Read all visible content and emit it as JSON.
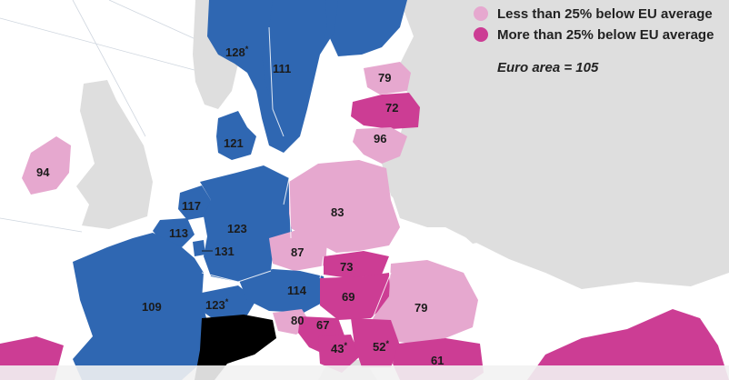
{
  "legend": {
    "items": [
      {
        "label": "Less than 25% below EU average",
        "color": "#e6a8cf"
      },
      {
        "label": "More than 25% below EU average",
        "color": "#cc3d94"
      }
    ]
  },
  "note": "Euro area = 105",
  "colors": {
    "above_average": "#2f67b2",
    "less_than_25_below": "#e6a8cf",
    "more_than_25_below": "#cc3d94",
    "non_eu": "#dedede",
    "sea": "#ffffff"
  },
  "regions": [
    {
      "id": "sweden",
      "value": "128",
      "mark": "*",
      "category": "above_average"
    },
    {
      "id": "finland",
      "value": "111",
      "mark": "",
      "category": "above_average"
    },
    {
      "id": "estonia",
      "value": "79",
      "mark": "",
      "category": "less_than_25_below"
    },
    {
      "id": "latvia",
      "value": "72",
      "mark": "",
      "category": "more_than_25_below"
    },
    {
      "id": "lithuania",
      "value": "96",
      "mark": "",
      "category": "less_than_25_below"
    },
    {
      "id": "denmark",
      "value": "121",
      "mark": "",
      "category": "above_average"
    },
    {
      "id": "ireland",
      "value": "94",
      "mark": "",
      "category": "less_than_25_below"
    },
    {
      "id": "poland",
      "value": "83",
      "mark": "",
      "category": "less_than_25_below"
    },
    {
      "id": "netherlands",
      "value": "117",
      "mark": "",
      "category": "above_average"
    },
    {
      "id": "germany",
      "value": "123",
      "mark": "",
      "category": "above_average"
    },
    {
      "id": "belgium",
      "value": "113",
      "mark": "",
      "category": "above_average"
    },
    {
      "id": "luxembourg",
      "value": "131",
      "mark": "",
      "category": "above_average"
    },
    {
      "id": "czechia",
      "value": "87",
      "mark": "",
      "category": "less_than_25_below"
    },
    {
      "id": "slovakia",
      "value": "73",
      "mark": "",
      "category": "more_than_25_below"
    },
    {
      "id": "france",
      "value": "109",
      "mark": "",
      "category": "above_average"
    },
    {
      "id": "austria",
      "value": "114",
      "mark": "",
      "category": "above_average"
    },
    {
      "id": "hungary",
      "value": "69",
      "mark": "",
      "category": "more_than_25_below"
    },
    {
      "id": "romania",
      "value": "79",
      "mark": "",
      "category": "less_than_25_below"
    },
    {
      "id": "slovenia",
      "value": "80",
      "mark": "",
      "category": "less_than_25_below"
    },
    {
      "id": "croatia",
      "value": "67",
      "mark": "",
      "category": "more_than_25_below"
    },
    {
      "id": "bosnia",
      "value": "43",
      "mark": "*",
      "category": "more_than_25_below"
    },
    {
      "id": "serbia",
      "value": "52",
      "mark": "*",
      "category": "more_than_25_below"
    },
    {
      "id": "bulgaria",
      "value": "61",
      "mark": "",
      "category": "more_than_25_below"
    },
    {
      "id": "switzerland",
      "value": "123",
      "mark": "*",
      "category": "above_average"
    }
  ]
}
